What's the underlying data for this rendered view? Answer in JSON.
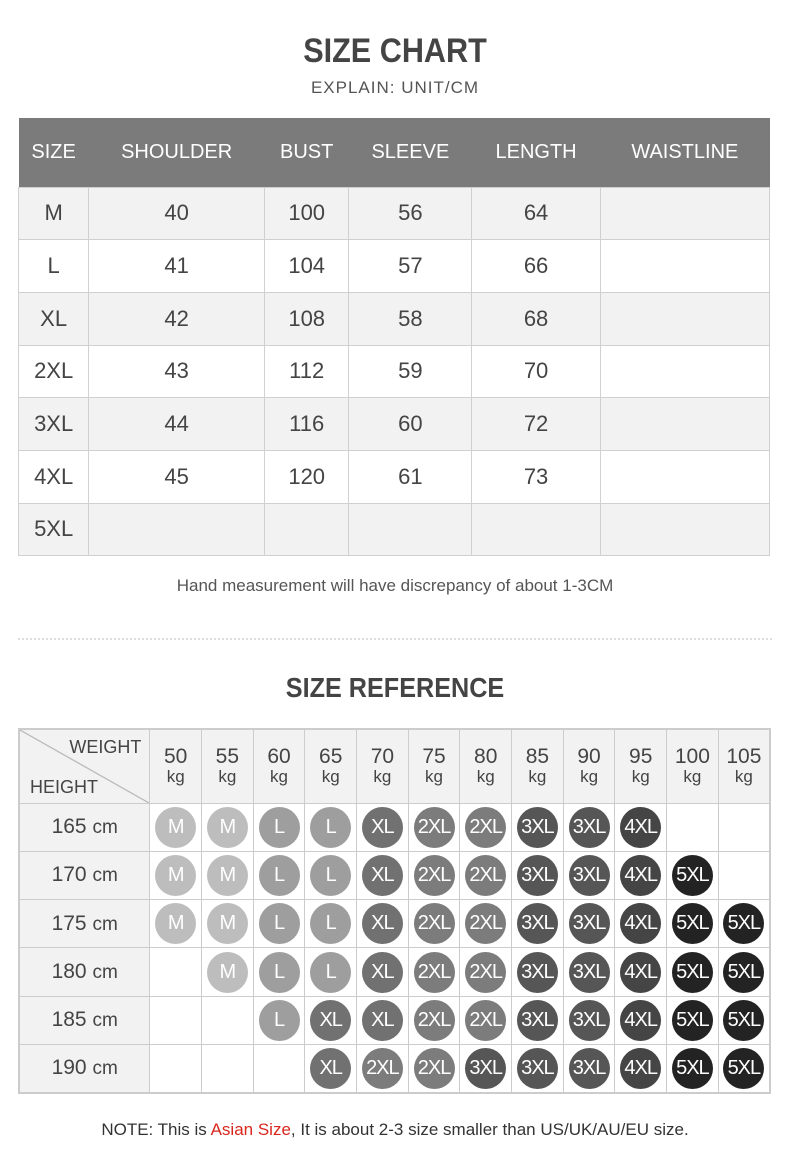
{
  "size_chart": {
    "title": "SIZE CHART",
    "subtitle": "EXPLAIN: UNIT/CM",
    "headers": [
      "SIZE",
      "SHOULDER",
      "BUST",
      "SLEEVE",
      "LENGTH",
      "WAISTLINE"
    ],
    "rows": [
      [
        "M",
        "40",
        "100",
        "56",
        "64",
        ""
      ],
      [
        "L",
        "41",
        "104",
        "57",
        "66",
        ""
      ],
      [
        "XL",
        "42",
        "108",
        "58",
        "68",
        ""
      ],
      [
        "2XL",
        "43",
        "112",
        "59",
        "70",
        ""
      ],
      [
        "3XL",
        "44",
        "116",
        "60",
        "72",
        ""
      ],
      [
        "4XL",
        "45",
        "120",
        "61",
        "73",
        ""
      ],
      [
        "5XL",
        "",
        "",
        "",
        "",
        ""
      ]
    ],
    "note": "Hand measurement will have discrepancy of about 1-3CM"
  },
  "size_reference": {
    "title": "SIZE REFERENCE",
    "weight_label": "WEIGHT",
    "height_label": "HEIGHT",
    "weight_unit": "kg",
    "height_unit": "cm",
    "weights": [
      "50",
      "55",
      "60",
      "65",
      "70",
      "75",
      "80",
      "85",
      "90",
      "95",
      "100",
      "105"
    ],
    "rows": [
      {
        "height": "165",
        "sizes": [
          "M",
          "M",
          "L",
          "L",
          "XL",
          "2XL",
          "2XL",
          "3XL",
          "3XL",
          "4XL",
          "",
          ""
        ]
      },
      {
        "height": "170",
        "sizes": [
          "M",
          "M",
          "L",
          "L",
          "XL",
          "2XL",
          "2XL",
          "3XL",
          "3XL",
          "4XL",
          "5XL",
          ""
        ]
      },
      {
        "height": "175",
        "sizes": [
          "M",
          "M",
          "L",
          "L",
          "XL",
          "2XL",
          "2XL",
          "3XL",
          "3XL",
          "4XL",
          "5XL",
          "5XL"
        ]
      },
      {
        "height": "180",
        "sizes": [
          "",
          "M",
          "L",
          "L",
          "XL",
          "2XL",
          "2XL",
          "3XL",
          "3XL",
          "4XL",
          "5XL",
          "5XL"
        ]
      },
      {
        "height": "185",
        "sizes": [
          "",
          "",
          "L",
          "XL",
          "XL",
          "2XL",
          "2XL",
          "3XL",
          "3XL",
          "4XL",
          "5XL",
          "5XL"
        ]
      },
      {
        "height": "190",
        "sizes": [
          "",
          "",
          "",
          "XL",
          "2XL",
          "2XL",
          "3XL",
          "3XL",
          "3XL",
          "4XL",
          "5XL",
          "5XL"
        ]
      }
    ],
    "size_colors": {
      "M": "#bdbdbd",
      "L": "#9e9e9e",
      "XL": "#717171",
      "2XL": "#7c7c7c",
      "3XL": "#565656",
      "4XL": "#454545",
      "5XL": "#232323"
    }
  },
  "footer": {
    "prefix": "NOTE: This is ",
    "highlight": "Asian Size",
    "suffix": ", It is about 2-3 size smaller than US/UK/AU/EU size.",
    "highlight_color": "#d9261c"
  }
}
